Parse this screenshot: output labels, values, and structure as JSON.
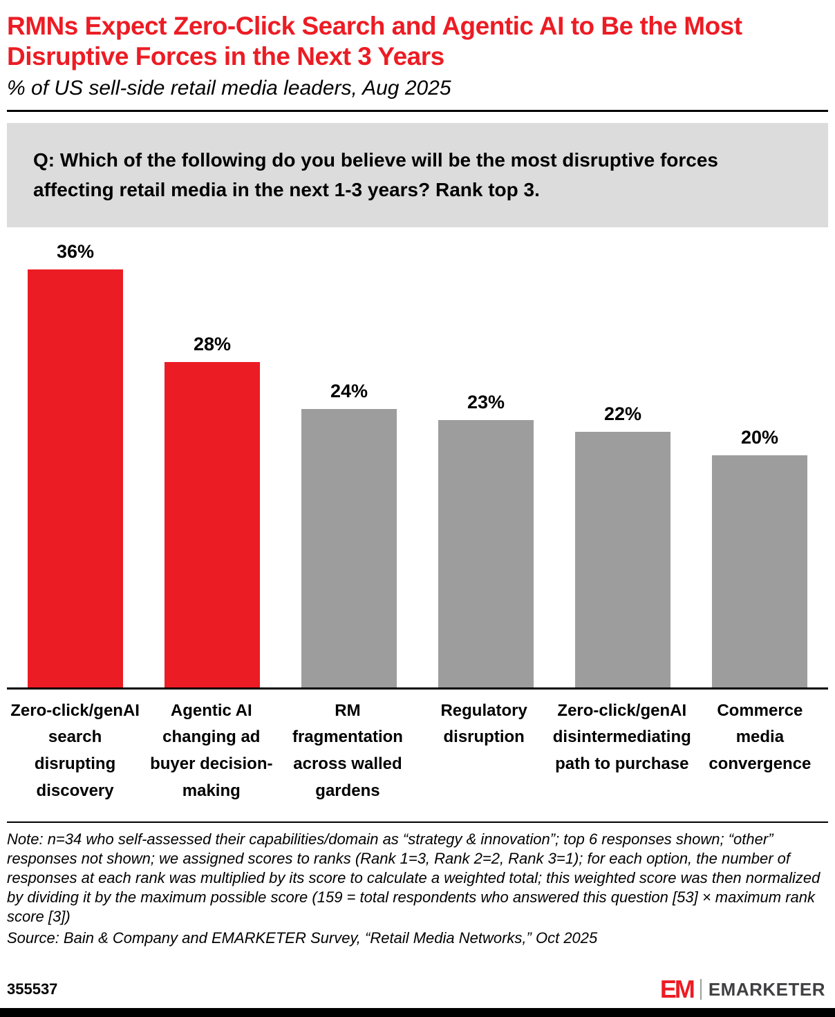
{
  "header": {
    "title": "RMNs Expect Zero-Click Search and Agentic AI to Be the Most Disruptive Forces in the Next 3 Years",
    "subtitle": "% of US sell-side retail media leaders, Aug 2025"
  },
  "question": "Q: Which of the following do you believe will be the most disruptive forces affecting retail media in the next 1-3 years? Rank top 3.",
  "chart_data": {
    "type": "bar",
    "title": "RMNs Expect Zero-Click Search and Agentic AI to Be the Most Disruptive Forces in the Next 3 Years",
    "subtitle": "% of US sell-side retail media leaders, Aug 2025",
    "categories": [
      "Zero-click/genAI search disrupting discovery",
      "Agentic AI changing ad buyer decision-making",
      "RM fragmentation across walled gardens",
      "Regulatory disruption",
      "Zero-click/genAI disintermediating path to purchase",
      "Commerce media convergence"
    ],
    "values": [
      36,
      28,
      24,
      23,
      22,
      20
    ],
    "value_labels": [
      "36%",
      "28%",
      "24%",
      "23%",
      "22%",
      "20%"
    ],
    "bar_colors": [
      "#ec1c24",
      "#ec1c24",
      "#9d9d9d",
      "#9d9d9d",
      "#9d9d9d",
      "#9d9d9d"
    ],
    "ylim": [
      0,
      40
    ],
    "grid": false,
    "legend": false,
    "xlabel": "",
    "ylabel": "% of US sell-side retail media leaders"
  },
  "notes": {
    "note": "Note: n=34 who self-assessed their capabilities/domain as “strategy & innovation”; top 6 responses shown; “other” responses not shown; we assigned scores to ranks (Rank 1=3, Rank 2=2, Rank 3=1); for each option, the number of responses at each rank was multiplied by its score to calculate a weighted total; this weighted score was then normalized by dividing it by the maximum possible score (159 = total respondents who answered this question [53] × maximum rank score [3])",
    "source": "Source: Bain & Company and EMARKETER Survey, “Retail Media Networks,” Oct 2025"
  },
  "footer": {
    "chart_id": "355537",
    "logo": {
      "em": "EM",
      "wordmark": "EMARKETER"
    }
  },
  "colors": {
    "accent_red": "#ec1c24",
    "bar_gray": "#9d9d9d",
    "question_bg": "#dcdcdc"
  }
}
